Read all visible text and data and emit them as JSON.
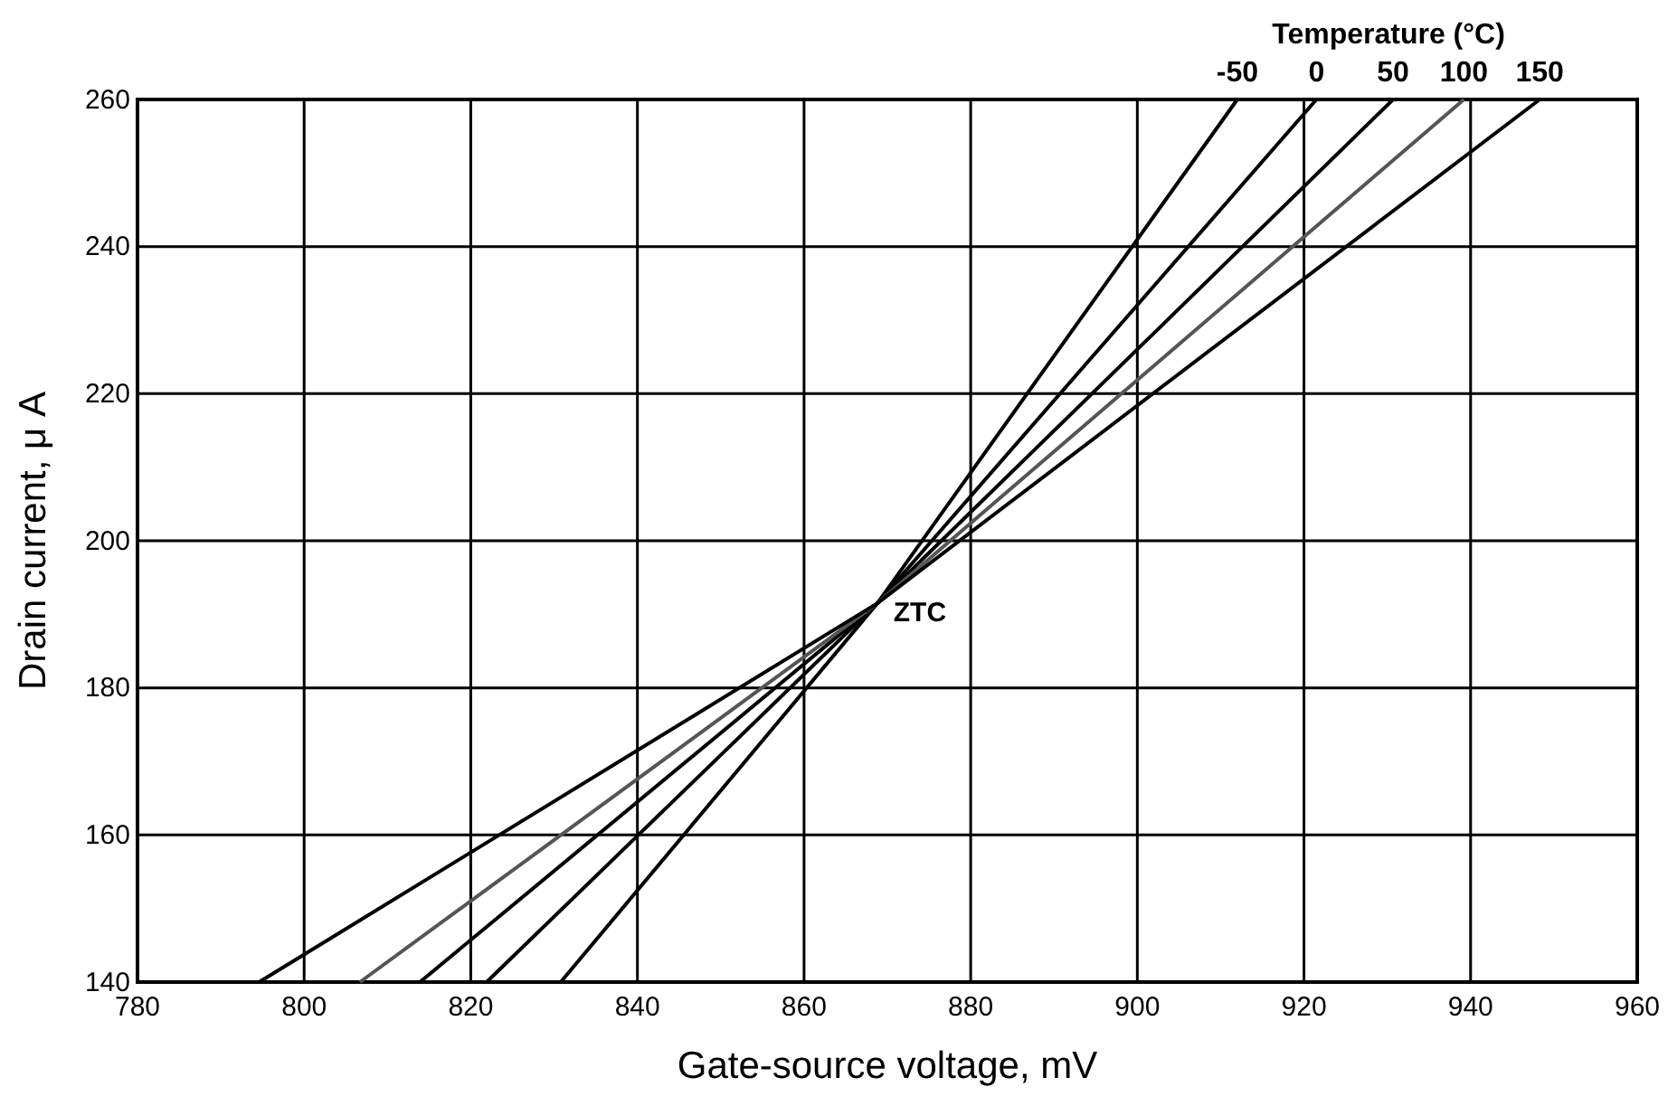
{
  "chart_data": {
    "type": "line",
    "xlabel": "Gate-source voltage, mV",
    "ylabel": "Drain current, μ A",
    "legend_title": "Temperature (°C)",
    "xlim": [
      780,
      960
    ],
    "xticks": [
      780,
      800,
      820,
      840,
      860,
      880,
      900,
      920,
      940,
      960
    ],
    "ylim": [
      140,
      260
    ],
    "yticks": [
      140,
      160,
      180,
      200,
      220,
      240,
      260
    ],
    "grid": true,
    "series": [
      {
        "name": "-50",
        "color": "#000000",
        "x": [
          830.8,
          868.8,
          912
        ],
        "values": [
          140,
          191.5,
          260
        ]
      },
      {
        "name": "0",
        "color": "#000000",
        "x": [
          821.9,
          868.8,
          921.5
        ],
        "values": [
          140,
          191.5,
          260
        ]
      },
      {
        "name": "50",
        "color": "#000000",
        "x": [
          813.9,
          868.8,
          930.7
        ],
        "values": [
          140,
          191.5,
          260
        ]
      },
      {
        "name": "100",
        "color": "#555555",
        "x": [
          806.7,
          868.8,
          939.2
        ],
        "values": [
          140,
          191.5,
          260
        ]
      },
      {
        "name": "150",
        "color": "#000000",
        "x": [
          794.6,
          868.8,
          948.3
        ],
        "values": [
          140,
          191.5,
          260
        ]
      }
    ],
    "annotations": [
      {
        "text": "ZTC",
        "x": 869,
        "y": 191
      }
    ]
  }
}
